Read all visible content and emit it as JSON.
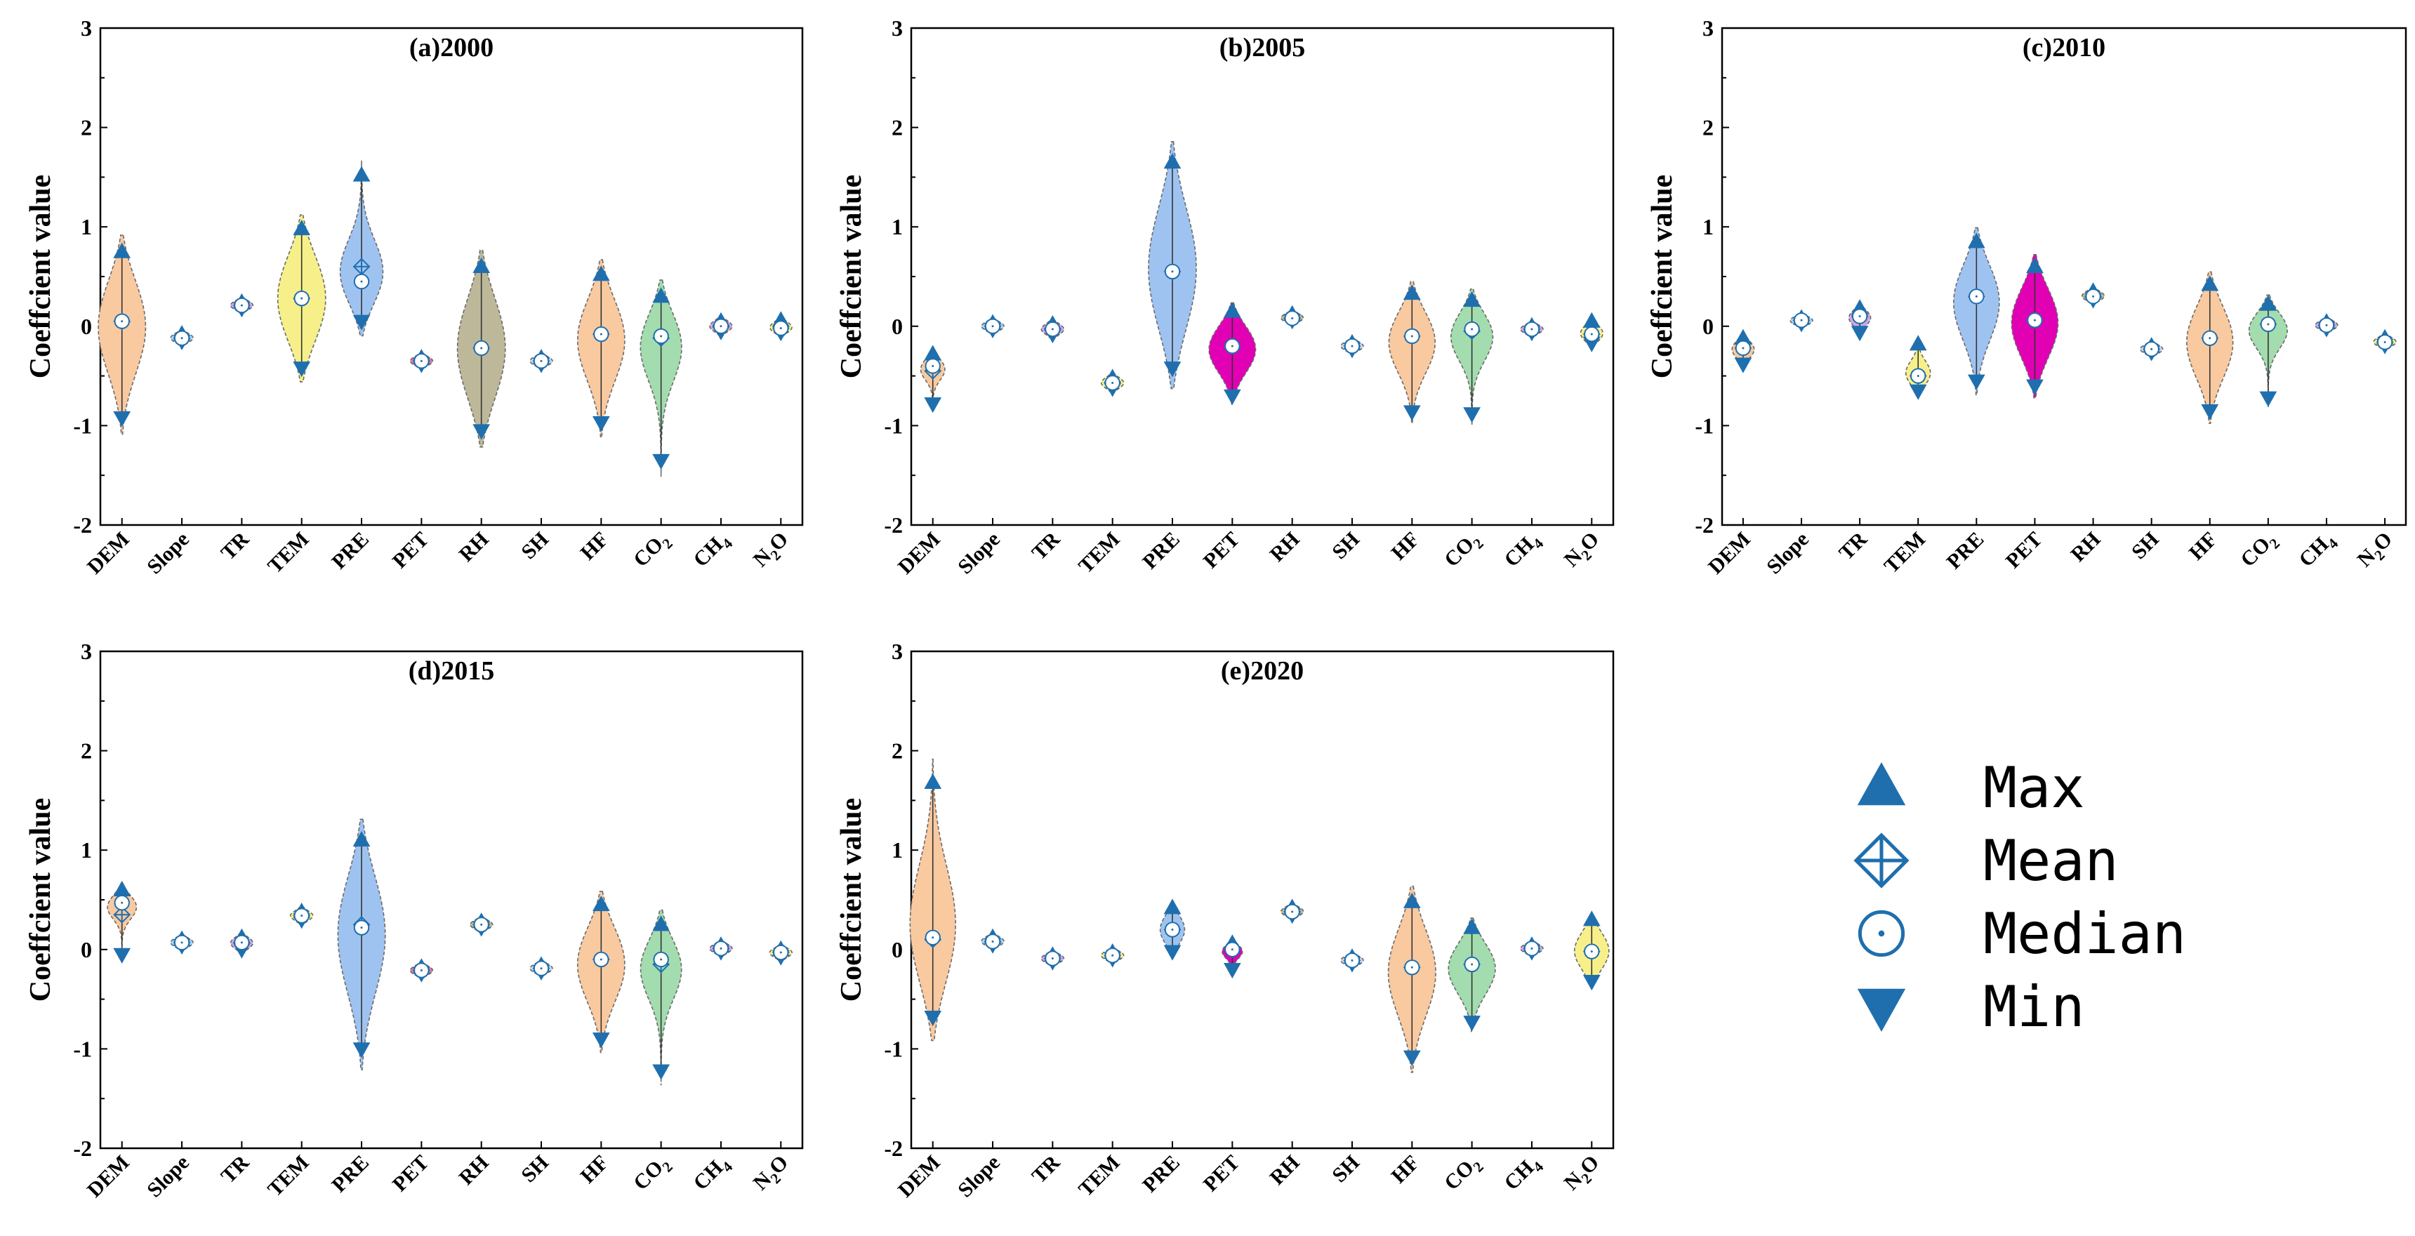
{
  "chart_data": {
    "type": "violin",
    "ylabel": "Coeffcient value",
    "ylim": [
      -2,
      3
    ],
    "yticks": [
      "-2",
      "-1",
      "0",
      "1",
      "2",
      "3"
    ],
    "categories": [
      "DEM",
      "Slope",
      "TR",
      "TEM",
      "PRE",
      "PET",
      "RH",
      "SH",
      "HF",
      "CO",
      "CH",
      "N"
    ],
    "category_subscripts": [
      "",
      "",
      "",
      "",
      "",
      "",
      "",
      "",
      "",
      "2",
      "4",
      "2"
    ],
    "category_suffixes": [
      "",
      "",
      "",
      "",
      "",
      "",
      "",
      "",
      "",
      "",
      "",
      "O"
    ],
    "colors": {
      "DEM": "#f9c9a0",
      "Slope": "#a9d4f5",
      "TR": "#d0a8e0",
      "TEM": "#f7f08a",
      "PRE": "#9fc3f0",
      "PET": "#e07aa0",
      "RH": "#bdb89a",
      "SH": "#c6d7ec",
      "HF": "#f9c9a0",
      "CO": "#a3dcae",
      "CH": "#d0a8e0",
      "N": "#f7f08a",
      "PET_2005": "#e100b4",
      "PET_2010": "#e100b4",
      "PET_2020": "#e100b4",
      "marker": "#1f6fae",
      "outline": "#6a6a6a"
    },
    "panels": [
      {
        "title": "(a)2000",
        "series": [
          {
            "name": "DEM",
            "min": -0.92,
            "max": 0.75,
            "mean": 0.05,
            "median": 0.05
          },
          {
            "name": "Slope",
            "min": -0.15,
            "max": -0.08,
            "mean": -0.12,
            "median": -0.12
          },
          {
            "name": "TR",
            "min": 0.18,
            "max": 0.24,
            "mean": 0.21,
            "median": 0.21
          },
          {
            "name": "TEM",
            "min": -0.42,
            "max": 0.98,
            "mean": 0.28,
            "median": 0.28
          },
          {
            "name": "PRE",
            "min": 0.05,
            "max": 1.52,
            "mean": 0.6,
            "median": 0.45
          },
          {
            "name": "PET",
            "min": -0.38,
            "max": -0.32,
            "mean": -0.35,
            "median": -0.35
          },
          {
            "name": "RH",
            "min": -1.05,
            "max": 0.6,
            "mean": -0.22,
            "median": -0.22
          },
          {
            "name": "SH",
            "min": -0.38,
            "max": -0.32,
            "mean": -0.35,
            "median": -0.35
          },
          {
            "name": "HF",
            "min": -0.97,
            "max": 0.52,
            "mean": -0.08,
            "median": -0.08
          },
          {
            "name": "CO",
            "min": -1.35,
            "max": 0.3,
            "mean": -0.12,
            "median": -0.1
          },
          {
            "name": "CH",
            "min": -0.05,
            "max": 0.05,
            "mean": 0.0,
            "median": 0.0
          },
          {
            "name": "N",
            "min": -0.06,
            "max": 0.06,
            "mean": -0.02,
            "median": -0.02
          }
        ]
      },
      {
        "title": "(b)2005",
        "series": [
          {
            "name": "DEM",
            "min": -0.78,
            "max": -0.28,
            "mean": -0.45,
            "median": -0.4
          },
          {
            "name": "Slope",
            "min": -0.03,
            "max": 0.03,
            "mean": 0.0,
            "median": 0.0
          },
          {
            "name": "TR",
            "min": -0.08,
            "max": 0.02,
            "mean": -0.03,
            "median": -0.03
          },
          {
            "name": "TEM",
            "min": -0.62,
            "max": -0.52,
            "mean": -0.57,
            "median": -0.57
          },
          {
            "name": "PRE",
            "min": -0.42,
            "max": 1.65,
            "mean": 0.55,
            "median": 0.55
          },
          {
            "name": "PET",
            "min": -0.7,
            "max": 0.15,
            "mean": -0.2,
            "median": -0.2
          },
          {
            "name": "RH",
            "min": 0.06,
            "max": 0.12,
            "mean": 0.08,
            "median": 0.08
          },
          {
            "name": "SH",
            "min": -0.23,
            "max": -0.17,
            "mean": -0.2,
            "median": -0.2
          },
          {
            "name": "HF",
            "min": -0.86,
            "max": 0.33,
            "mean": -0.1,
            "median": -0.1
          },
          {
            "name": "CO",
            "min": -0.88,
            "max": 0.26,
            "mean": -0.05,
            "median": -0.03
          },
          {
            "name": "CH",
            "min": -0.06,
            "max": 0.0,
            "mean": -0.03,
            "median": -0.03
          },
          {
            "name": "N",
            "min": -0.17,
            "max": 0.05,
            "mean": -0.08,
            "median": -0.08
          }
        ]
      },
      {
        "title": "(c)2010",
        "series": [
          {
            "name": "DEM",
            "min": -0.38,
            "max": -0.12,
            "mean": -0.22,
            "median": -0.22
          },
          {
            "name": "Slope",
            "min": 0.03,
            "max": 0.08,
            "mean": 0.06,
            "median": 0.06
          },
          {
            "name": "TR",
            "min": -0.06,
            "max": 0.18,
            "mean": 0.1,
            "median": 0.1
          },
          {
            "name": "TEM",
            "min": -0.65,
            "max": -0.18,
            "mean": -0.5,
            "median": -0.5
          },
          {
            "name": "PRE",
            "min": -0.55,
            "max": 0.85,
            "mean": 0.3,
            "median": 0.3
          },
          {
            "name": "PET",
            "min": -0.6,
            "max": 0.6,
            "mean": 0.06,
            "median": 0.06
          },
          {
            "name": "RH",
            "min": 0.27,
            "max": 0.35,
            "mean": 0.3,
            "median": 0.3
          },
          {
            "name": "SH",
            "min": -0.26,
            "max": -0.2,
            "mean": -0.23,
            "median": -0.23
          },
          {
            "name": "HF",
            "min": -0.85,
            "max": 0.42,
            "mean": -0.12,
            "median": -0.12
          },
          {
            "name": "CO",
            "min": -0.72,
            "max": 0.22,
            "mean": 0.02,
            "median": 0.02
          },
          {
            "name": "CH",
            "min": -0.02,
            "max": 0.04,
            "mean": 0.01,
            "median": 0.01
          },
          {
            "name": "N",
            "min": -0.19,
            "max": -0.12,
            "mean": -0.16,
            "median": -0.16
          }
        ]
      },
      {
        "title": "(d)2015",
        "series": [
          {
            "name": "DEM",
            "min": -0.05,
            "max": 0.6,
            "mean": 0.35,
            "median": 0.47
          },
          {
            "name": "Slope",
            "min": 0.04,
            "max": 0.1,
            "mean": 0.07,
            "median": 0.07
          },
          {
            "name": "TR",
            "min": 0.0,
            "max": 0.12,
            "mean": 0.07,
            "median": 0.07
          },
          {
            "name": "TEM",
            "min": 0.3,
            "max": 0.38,
            "mean": 0.34,
            "median": 0.34
          },
          {
            "name": "PRE",
            "min": -1.0,
            "max": 1.1,
            "mean": 0.25,
            "median": 0.22
          },
          {
            "name": "PET",
            "min": -0.24,
            "max": -0.18,
            "mean": -0.21,
            "median": -0.21
          },
          {
            "name": "RH",
            "min": 0.22,
            "max": 0.28,
            "mean": 0.25,
            "median": 0.25
          },
          {
            "name": "SH",
            "min": -0.22,
            "max": -0.16,
            "mean": -0.19,
            "median": -0.19
          },
          {
            "name": "HF",
            "min": -0.9,
            "max": 0.45,
            "mean": -0.1,
            "median": -0.1
          },
          {
            "name": "CO",
            "min": -1.22,
            "max": 0.25,
            "mean": -0.15,
            "median": -0.1
          },
          {
            "name": "CH",
            "min": -0.02,
            "max": 0.04,
            "mean": 0.01,
            "median": 0.01
          },
          {
            "name": "N",
            "min": -0.07,
            "max": 0.0,
            "mean": -0.03,
            "median": -0.03
          }
        ]
      },
      {
        "title": "(e)2020",
        "series": [
          {
            "name": "DEM",
            "min": -0.68,
            "max": 1.68,
            "mean": 0.1,
            "median": 0.12
          },
          {
            "name": "Slope",
            "min": 0.05,
            "max": 0.12,
            "mean": 0.08,
            "median": 0.08
          },
          {
            "name": "TR",
            "min": -0.12,
            "max": -0.06,
            "mean": -0.09,
            "median": -0.09
          },
          {
            "name": "TEM",
            "min": -0.09,
            "max": -0.03,
            "mean": -0.06,
            "median": -0.06
          },
          {
            "name": "PRE",
            "min": -0.02,
            "max": 0.42,
            "mean": 0.2,
            "median": 0.2
          },
          {
            "name": "PET",
            "min": -0.2,
            "max": 0.06,
            "mean": 0.0,
            "median": 0.0
          },
          {
            "name": "RH",
            "min": 0.35,
            "max": 0.42,
            "mean": 0.38,
            "median": 0.38
          },
          {
            "name": "SH",
            "min": -0.14,
            "max": -0.08,
            "mean": -0.11,
            "median": -0.11
          },
          {
            "name": "HF",
            "min": -1.08,
            "max": 0.48,
            "mean": -0.18,
            "median": -0.18
          },
          {
            "name": "CO",
            "min": -0.73,
            "max": 0.22,
            "mean": -0.15,
            "median": -0.15
          },
          {
            "name": "CH",
            "min": -0.02,
            "max": 0.04,
            "mean": 0.01,
            "median": 0.01
          },
          {
            "name": "N",
            "min": -0.32,
            "max": 0.3,
            "mean": -0.02,
            "median": -0.02
          }
        ]
      }
    ],
    "legend": {
      "position": "bottom-right",
      "entries": [
        {
          "marker": "triangle-up",
          "label": "Max"
        },
        {
          "marker": "diamond-cross",
          "label": "Mean"
        },
        {
          "marker": "circle-dot",
          "label": "Median"
        },
        {
          "marker": "triangle-down",
          "label": "Min"
        }
      ]
    }
  }
}
